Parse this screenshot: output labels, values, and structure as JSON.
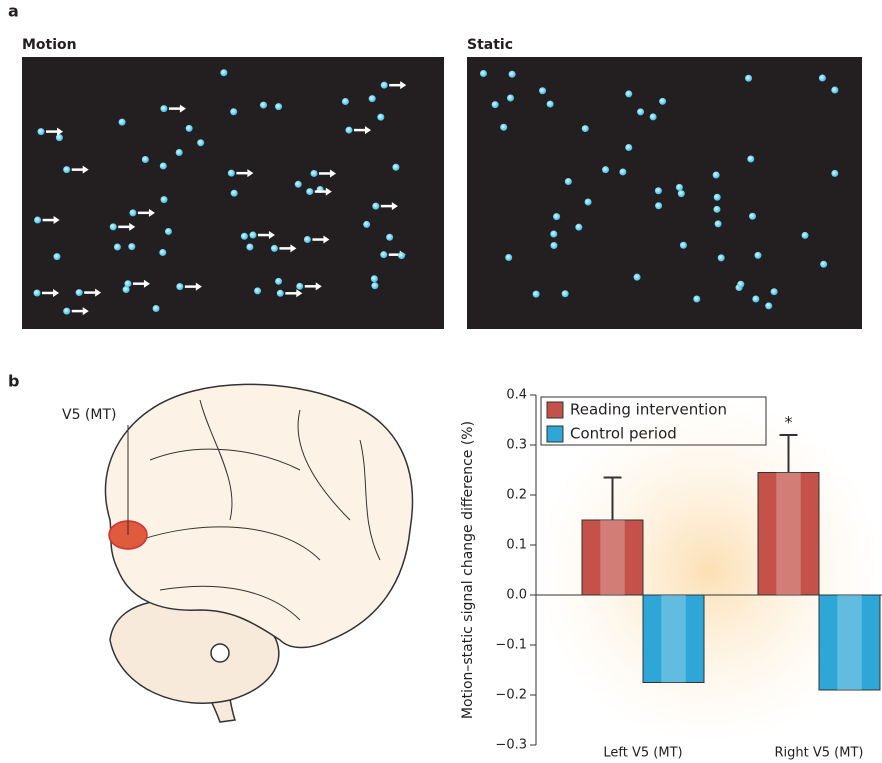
{
  "panel_a": {
    "label": "a",
    "left_title": "Motion",
    "right_title": "Static"
  },
  "panel_b": {
    "label": "b",
    "region_label": "V5 (MT)"
  },
  "chart_data": {
    "type": "bar",
    "y_label": "Motion–static signal change difference (%)",
    "categories": [
      "Left V5 (MT)",
      "Right V5 (MT)"
    ],
    "series": [
      {
        "name": "Reading intervention",
        "color": "#c4524a",
        "values": [
          0.15,
          0.245
        ],
        "errors": [
          0.085,
          0.075
        ]
      },
      {
        "name": "Control period",
        "color": "#2ea6d6",
        "values": [
          -0.175,
          -0.19
        ]
      }
    ],
    "ylim": [
      -0.3,
      0.4
    ],
    "yticks": [
      {
        "value": -0.3,
        "label": "−0.3"
      },
      {
        "value": -0.2,
        "label": "−0.2"
      },
      {
        "value": -0.1,
        "label": "−0.1"
      },
      {
        "value": 0,
        "label": "0.0"
      },
      0.1,
      0.2,
      0.3,
      0.4
    ],
    "annotations": [
      "*"
    ],
    "legend": "upper-left"
  }
}
